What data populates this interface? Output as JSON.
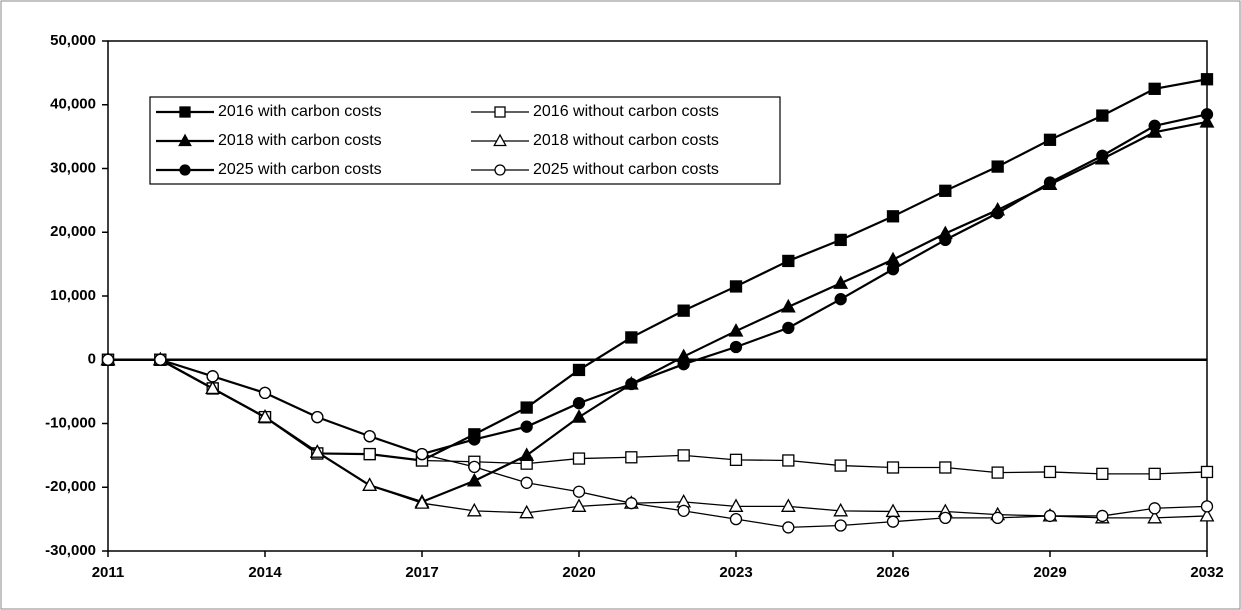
{
  "chart_data": {
    "type": "line",
    "x": [
      2011,
      2012,
      2013,
      2014,
      2015,
      2016,
      2017,
      2018,
      2019,
      2020,
      2021,
      2022,
      2023,
      2024,
      2025,
      2026,
      2027,
      2028,
      2029,
      2030,
      2031,
      2032
    ],
    "xlim": [
      2011,
      2032
    ],
    "xticks": [
      2011,
      2014,
      2017,
      2020,
      2023,
      2026,
      2029,
      2032
    ],
    "ylim": [
      -30000,
      50000
    ],
    "yticks": [
      {
        "value": -30000,
        "label": "-30,000"
      },
      {
        "value": -20000,
        "label": "-20,000"
      },
      {
        "value": -10000,
        "label": "-10,000"
      },
      0,
      {
        "value": 10000,
        "label": "10,000"
      },
      {
        "value": 20000,
        "label": "20,000"
      },
      {
        "value": 30000,
        "label": "30,000"
      },
      {
        "value": 40000,
        "label": "40,000"
      },
      {
        "value": 50000,
        "label": "50,000"
      }
    ],
    "grid": false,
    "legend": "upper left",
    "series": [
      {
        "name": "2016 with carbon costs",
        "color": "#000000",
        "marker": "square",
        "filled": true,
        "values": [
          0,
          0,
          -4500,
          -9000,
          -14700,
          -14800,
          -15800,
          -11700,
          -7500,
          -1600,
          3500,
          7700,
          11500,
          15500,
          18800,
          22500,
          26500,
          30300,
          34500,
          38300,
          42500,
          44000
        ]
      },
      {
        "name": "2016 without carbon costs",
        "color": "#000000",
        "marker": "square",
        "filled": false,
        "values": [
          0,
          0,
          -4500,
          -9000,
          -14700,
          -14800,
          -15800,
          -16000,
          -16300,
          -15500,
          -15300,
          -15000,
          -15700,
          -15800,
          -16600,
          -16900,
          -16900,
          -17700,
          -17600,
          -17900,
          -17900,
          -17600
        ]
      },
      {
        "name": "2018 with carbon costs",
        "color": "#000000",
        "marker": "triangle",
        "filled": true,
        "values": [
          0,
          0,
          -4500,
          -9000,
          -14500,
          -19700,
          -22300,
          -19000,
          -15000,
          -9000,
          -3800,
          500,
          4500,
          8300,
          12000,
          15700,
          19800,
          23500,
          27500,
          31500,
          35700,
          37300
        ]
      },
      {
        "name": "2018 without carbon costs",
        "color": "#000000",
        "marker": "triangle",
        "filled": false,
        "values": [
          0,
          0,
          -4500,
          -9000,
          -14500,
          -19700,
          -22500,
          -23700,
          -24000,
          -23000,
          -22500,
          -22300,
          -23000,
          -23000,
          -23700,
          -23800,
          -23800,
          -24300,
          -24500,
          -24800,
          -24800,
          -24500
        ]
      },
      {
        "name": "2025 with carbon costs",
        "color": "#000000",
        "marker": "circle",
        "filled": true,
        "values": [
          0,
          0,
          -2600,
          -5200,
          -9000,
          -12000,
          -14800,
          -12500,
          -10500,
          -6800,
          -3800,
          -700,
          2000,
          5000,
          9500,
          14200,
          18800,
          23000,
          27800,
          32000,
          36700,
          38500
        ]
      },
      {
        "name": "2025 without carbon costs",
        "color": "#000000",
        "marker": "circle",
        "filled": false,
        "values": [
          0,
          0,
          -2600,
          -5200,
          -9000,
          -12000,
          -14800,
          -16800,
          -19300,
          -20700,
          -22500,
          -23700,
          -25000,
          -26300,
          -26000,
          -25400,
          -24800,
          -24800,
          -24500,
          -24500,
          -23300,
          -23000
        ]
      }
    ]
  }
}
